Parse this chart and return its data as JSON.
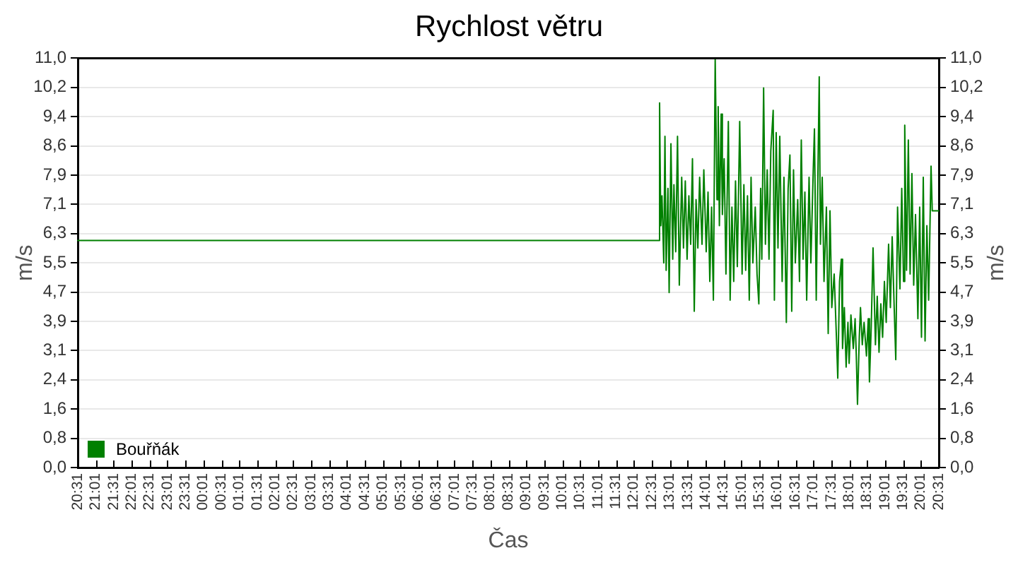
{
  "chart_data": {
    "type": "line",
    "title": "Rychlost větru",
    "xlabel": "Čas",
    "ylabel": "m/s",
    "y2label": "m/s",
    "x": [
      "--01-01T20:31",
      "--01-02T12:43",
      "--01-02T12:44",
      "--01-02T12:46",
      "--01-02T12:48",
      "--01-02T12:51",
      "--01-02T12:53",
      "--01-02T12:55",
      "--01-02T12:58",
      "--01-02T13:00",
      "--01-02T13:03",
      "--01-02T13:06",
      "--01-02T13:08",
      "--01-02T13:11",
      "--01-02T13:14",
      "--01-02T13:17",
      "--01-02T13:21",
      "--01-02T13:24",
      "--01-02T13:27",
      "--01-02T13:30",
      "--01-02T13:33",
      "--01-02T13:36",
      "--01-02T13:39",
      "--01-02T13:42",
      "--01-02T13:45",
      "--01-02T13:48",
      "--01-02T13:51",
      "--01-02T13:55",
      "--01-02T13:58",
      "--01-02T14:02",
      "--01-02T14:05",
      "--01-02T14:08",
      "--01-02T14:11",
      "--01-02T14:14",
      "--01-02T14:17",
      "--01-02T14:20",
      "--01-02T14:22",
      "--01-02T14:24",
      "--01-02T14:27",
      "--01-02T14:29",
      "--01-02T14:32",
      "--01-02T14:35",
      "--01-02T14:39",
      "--01-02T14:42",
      "--01-02T14:45",
      "--01-02T14:48",
      "--01-02T14:51",
      "--01-02T14:54",
      "--01-02T14:58",
      "--01-02T15:02",
      "--01-02T15:05",
      "--01-02T15:08",
      "--01-02T15:11",
      "--01-02T15:14",
      "--01-02T15:17",
      "--01-02T15:20",
      "--01-02T15:24",
      "--01-02T15:27",
      "--01-02T15:30",
      "--01-02T15:33",
      "--01-02T15:35",
      "--01-02T15:38",
      "--01-02T15:41",
      "--01-02T15:44",
      "--01-02T15:47",
      "--01-02T15:50",
      "--01-02T15:54",
      "--01-02T15:56",
      "--01-02T15:59",
      "--01-02T16:02",
      "--01-02T16:05",
      "--01-02T16:09",
      "--01-02T16:12",
      "--01-02T16:16",
      "--01-02T16:19",
      "--01-02T16:22",
      "--01-02T16:25",
      "--01-02T16:28",
      "--01-02T16:31",
      "--01-02T16:35",
      "--01-02T16:38",
      "--01-02T16:41",
      "--01-02T16:44",
      "--01-02T16:47",
      "--01-02T16:50",
      "--01-02T16:54",
      "--01-02T16:57",
      "--01-02T17:01",
      "--01-02T17:03",
      "--01-02T17:06",
      "--01-02T17:11",
      "--01-02T17:13",
      "--01-02T17:16",
      "--01-02T17:19",
      "--01-02T17:23",
      "--01-02T17:26",
      "--01-02T17:29",
      "--01-02T17:32",
      "--01-02T17:36",
      "--01-02T17:40",
      "--01-02T17:42",
      "--01-02T17:45",
      "--01-02T17:48",
      "--01-02T17:50",
      "--01-02T17:53",
      "--01-02T17:56",
      "--01-02T17:59",
      "--01-02T18:01",
      "--01-02T18:04",
      "--01-02T18:08",
      "--01-02T18:11",
      "--01-02T18:13",
      "--01-02T18:15",
      "--01-02T18:18",
      "--01-02T18:20",
      "--01-02T18:23",
      "--01-02T18:26",
      "--01-02T18:30",
      "--01-02T18:33",
      "--01-02T18:35",
      "--01-02T18:38",
      "--01-02T18:41",
      "--01-02T18:45",
      "--01-02T18:48",
      "--01-02T18:51",
      "--01-02T18:54",
      "--01-02T18:57",
      "--01-02T19:00",
      "--01-02T19:03",
      "--01-02T19:07",
      "--01-02T19:10",
      "--01-02T19:13",
      "--01-02T19:16",
      "--01-02T19:19",
      "--01-02T19:22",
      "--01-02T19:26",
      "--01-02T19:29",
      "--01-02T19:32",
      "--01-02T19:34",
      "--01-02T19:37",
      "--01-02T19:40",
      "--01-02T19:43",
      "--01-02T19:46",
      "--01-02T19:49",
      "--01-02T19:52",
      "--01-02T19:56",
      "--01-02T19:59",
      "--01-02T20:02",
      "--01-02T20:05",
      "--01-02T20:08",
      "--01-02T20:11",
      "--01-02T20:14",
      "--01-02T20:18",
      "--01-02T20:20",
      "--01-02T20:31"
    ],
    "series": [
      {
        "name": "Bouřňák",
        "color": "#008000",
        "values": [
          6.1,
          6.1,
          9.8,
          6.5,
          7.3,
          5.5,
          8.9,
          5.3,
          7.5,
          4.7,
          8.7,
          5.6,
          7.6,
          5.8,
          8.9,
          4.9,
          7.8,
          5.9,
          7.7,
          5.6,
          7.3,
          6.0,
          8.3,
          4.2,
          7.2,
          5.9,
          7.8,
          6.0,
          8.0,
          5.8,
          7.4,
          5.0,
          7.0,
          4.5,
          11.0,
          7.2,
          9.7,
          6.5,
          9.5,
          6.8,
          8.3,
          5.2,
          9.3,
          4.5,
          7.0,
          5.0,
          7.7,
          5.4,
          9.3,
          5.2,
          7.6,
          5.3,
          7.3,
          4.5,
          7.8,
          5.5,
          7.0,
          5.2,
          4.4,
          7.5,
          5.6,
          10.2,
          6.0,
          8.0,
          5.6,
          8.5,
          9.6,
          4.5,
          9.0,
          5.9,
          8.9,
          5.0,
          7.8,
          3.9,
          7.5,
          8.4,
          4.2,
          8.0,
          5.5,
          7.2,
          5.0,
          8.8,
          5.6,
          7.4,
          4.5,
          7.8,
          5.5,
          8.0,
          9.1,
          4.5,
          10.5,
          6.0,
          7.8,
          5.0,
          7.0,
          3.6,
          6.9,
          4.3,
          5.2,
          3.4,
          2.4,
          5.0,
          5.6,
          3.2,
          4.3,
          2.7,
          3.9,
          2.8,
          4.1,
          3.2,
          4.0,
          3.0,
          1.7,
          3.5,
          4.3,
          3.3,
          3.9,
          3.0,
          4.0,
          2.3,
          3.8,
          5.9,
          3.3,
          4.6,
          3.1,
          4.4,
          3.5,
          5.0,
          3.9,
          6.0,
          4.3,
          6.2,
          4.5,
          2.9,
          7.0,
          4.8,
          7.5,
          5.0,
          9.2,
          5.3,
          8.8,
          5.2,
          7.9,
          4.9,
          6.8,
          4.0,
          7.0,
          3.5,
          7.8,
          3.4,
          6.5,
          4.5,
          8.1,
          6.9,
          6.9
        ]
      }
    ],
    "xlim": [
      "--01-01T20:31",
      "--01-02T20:31"
    ],
    "xticks": [
      {
        "value": "--01-01T20:31",
        "label": "20:31"
      },
      {
        "value": "--01-01T21:01",
        "label": "21:01"
      },
      {
        "value": "--01-01T21:31",
        "label": "21:31"
      },
      {
        "value": "--01-01T22:01",
        "label": "22:01"
      },
      {
        "value": "--01-01T22:31",
        "label": "22:31"
      },
      {
        "value": "--01-01T23:01",
        "label": "23:01"
      },
      {
        "value": "--01-01T23:31",
        "label": "23:31"
      },
      {
        "value": "--01-02T00:01",
        "label": "00:01"
      },
      {
        "value": "--01-02T00:31",
        "label": "00:31"
      },
      {
        "value": "--01-02T01:01",
        "label": "01:01"
      },
      {
        "value": "--01-02T01:31",
        "label": "01:31"
      },
      {
        "value": "--01-02T02:01",
        "label": "02:01"
      },
      {
        "value": "--01-02T02:31",
        "label": "02:31"
      },
      {
        "value": "--01-02T03:01",
        "label": "03:01"
      },
      {
        "value": "--01-02T03:31",
        "label": "03:31"
      },
      {
        "value": "--01-02T04:01",
        "label": "04:01"
      },
      {
        "value": "--01-02T04:31",
        "label": "04:31"
      },
      {
        "value": "--01-02T05:01",
        "label": "05:01"
      },
      {
        "value": "--01-02T05:31",
        "label": "05:31"
      },
      {
        "value": "--01-02T06:01",
        "label": "06:01"
      },
      {
        "value": "--01-02T06:31",
        "label": "06:31"
      },
      {
        "value": "--01-02T07:01",
        "label": "07:01"
      },
      {
        "value": "--01-02T07:31",
        "label": "07:31"
      },
      {
        "value": "--01-02T08:01",
        "label": "08:01"
      },
      {
        "value": "--01-02T08:31",
        "label": "08:31"
      },
      {
        "value": "--01-02T09:01",
        "label": "09:01"
      },
      {
        "value": "--01-02T09:31",
        "label": "09:31"
      },
      {
        "value": "--01-02T10:01",
        "label": "10:01"
      },
      {
        "value": "--01-02T10:31",
        "label": "10:31"
      },
      {
        "value": "--01-02T11:01",
        "label": "11:01"
      },
      {
        "value": "--01-02T11:31",
        "label": "11:31"
      },
      {
        "value": "--01-02T12:01",
        "label": "12:01"
      },
      {
        "value": "--01-02T12:31",
        "label": "12:31"
      },
      {
        "value": "--01-02T13:01",
        "label": "13:01"
      },
      {
        "value": "--01-02T13:31",
        "label": "13:31"
      },
      {
        "value": "--01-02T14:01",
        "label": "14:01"
      },
      {
        "value": "--01-02T14:31",
        "label": "14:31"
      },
      {
        "value": "--01-02T15:01",
        "label": "15:01"
      },
      {
        "value": "--01-02T15:31",
        "label": "15:31"
      },
      {
        "value": "--01-02T16:01",
        "label": "16:01"
      },
      {
        "value": "--01-02T16:31",
        "label": "16:31"
      },
      {
        "value": "--01-02T17:01",
        "label": "17:01"
      },
      {
        "value": "--01-02T17:31",
        "label": "17:31"
      },
      {
        "value": "--01-02T18:01",
        "label": "18:01"
      },
      {
        "value": "--01-02T18:31",
        "label": "18:31"
      },
      {
        "value": "--01-02T19:01",
        "label": "19:01"
      },
      {
        "value": "--01-02T19:31",
        "label": "19:31"
      },
      {
        "value": "--01-02T20:01",
        "label": "20:01"
      },
      {
        "value": "--01-02T20:31",
        "label": "20:31"
      }
    ],
    "ylim": [
      0,
      11
    ],
    "yticks": [
      {
        "value": 0,
        "label": "0,0"
      },
      {
        "value": 0.7857,
        "label": "0,8"
      },
      {
        "value": 1.5714,
        "label": "1,6"
      },
      {
        "value": 2.3571,
        "label": "2,4"
      },
      {
        "value": 3.1429,
        "label": "3,1"
      },
      {
        "value": 3.9286,
        "label": "3,9"
      },
      {
        "value": 4.7143,
        "label": "4,7"
      },
      {
        "value": 5.5,
        "label": "5,5"
      },
      {
        "value": 6.2857,
        "label": "6,3"
      },
      {
        "value": 7.0714,
        "label": "7,1"
      },
      {
        "value": 7.8571,
        "label": "7,9"
      },
      {
        "value": 8.6429,
        "label": "8,6"
      },
      {
        "value": 9.4286,
        "label": "9,4"
      },
      {
        "value": 10.2143,
        "label": "10,2"
      },
      {
        "value": 11,
        "label": "11,0"
      }
    ],
    "y2lim": [
      0,
      11
    ],
    "y2ticks": [
      {
        "value": 0,
        "label": "0,0"
      },
      {
        "value": 0.7857,
        "label": "0,8"
      },
      {
        "value": 1.5714,
        "label": "1,6"
      },
      {
        "value": 2.3571,
        "label": "2,4"
      },
      {
        "value": 3.1429,
        "label": "3,1"
      },
      {
        "value": 3.9286,
        "label": "3,9"
      },
      {
        "value": 4.7143,
        "label": "4,7"
      },
      {
        "value": 5.5,
        "label": "5,5"
      },
      {
        "value": 6.2857,
        "label": "6,3"
      },
      {
        "value": 7.0714,
        "label": "7,1"
      },
      {
        "value": 7.8571,
        "label": "7,9"
      },
      {
        "value": 8.6429,
        "label": "8,6"
      },
      {
        "value": 9.4286,
        "label": "9,4"
      },
      {
        "value": 10.2143,
        "label": "10,2"
      },
      {
        "value": 11,
        "label": "11,0"
      }
    ],
    "grid": "y",
    "legend": "bottom left"
  }
}
